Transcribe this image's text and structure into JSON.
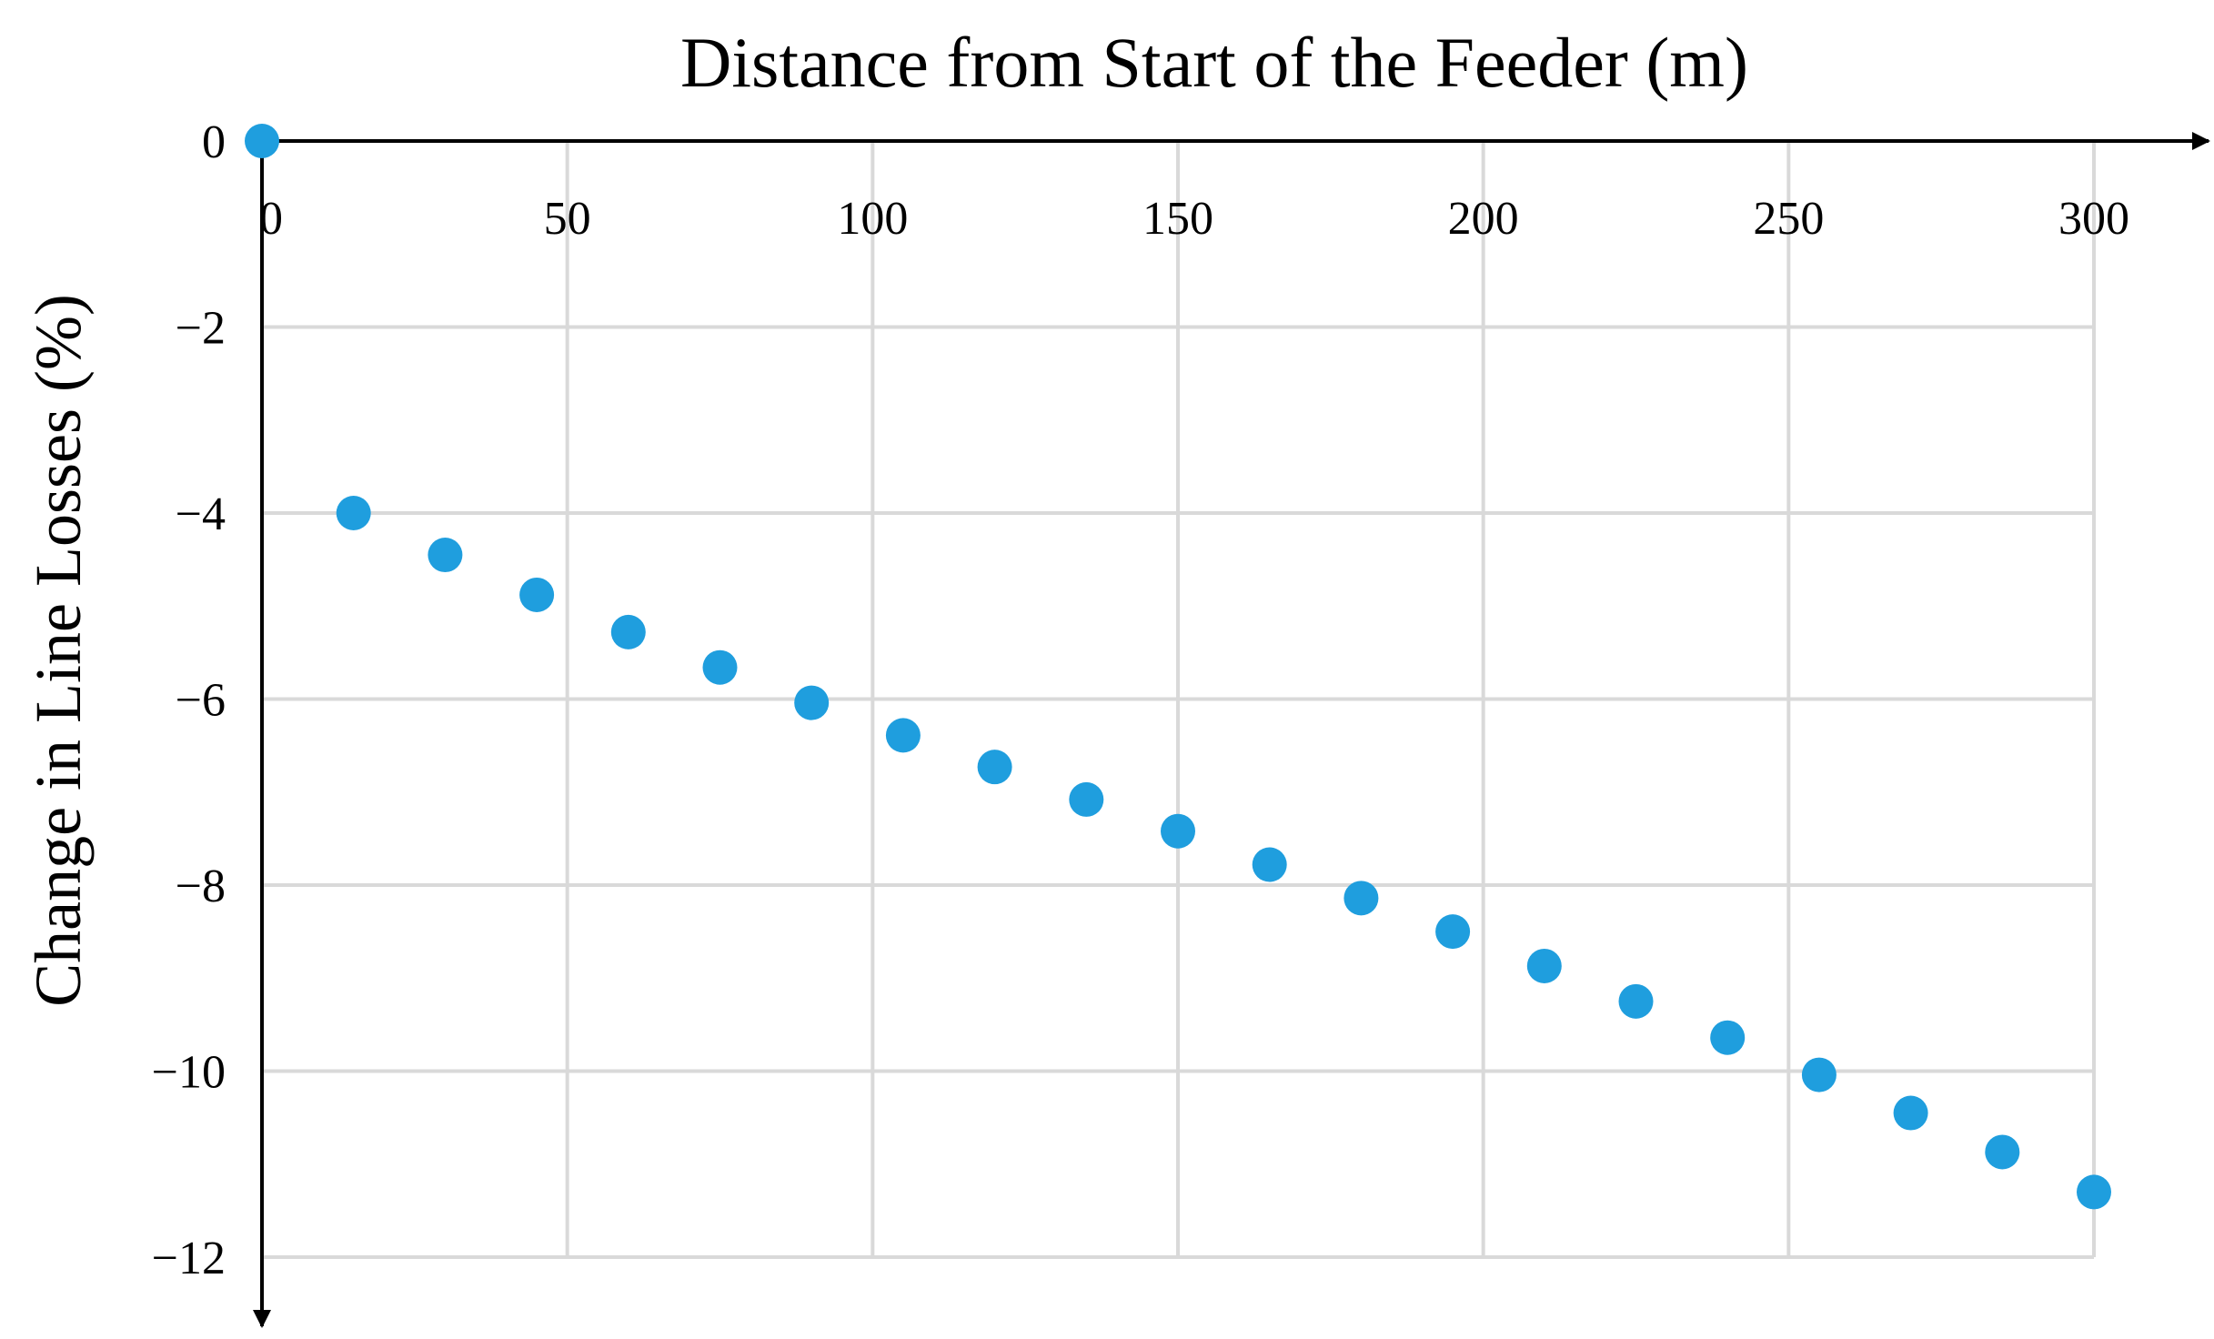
{
  "chart_data": {
    "type": "scatter",
    "title": "Distance from Start of the Feeder (m)",
    "xlabel": "Distance from Start of the Feeder (m)",
    "ylabel": "Change in Line Losses (%)",
    "xlim": [
      0,
      300
    ],
    "ylim": [
      -12,
      0
    ],
    "x_ticks": [
      0,
      50,
      100,
      150,
      200,
      250,
      300
    ],
    "x_tick_labels": [
      "0",
      "50",
      "100",
      "150",
      "200",
      "250",
      "300"
    ],
    "y_ticks": [
      0,
      -2,
      -4,
      -6,
      -8,
      -10,
      -12
    ],
    "y_tick_labels": [
      "0",
      "−2",
      "−4",
      "−6",
      "−8",
      "−10",
      "−12"
    ],
    "grid": true,
    "x_axis_position": "top",
    "marker_color": "#1f9ede",
    "series": [
      {
        "name": "Change in Line Losses",
        "x": [
          0,
          15,
          30,
          45,
          60,
          75,
          90,
          105,
          120,
          135,
          150,
          165,
          180,
          195,
          210,
          225,
          240,
          255,
          270,
          285,
          300
        ],
        "y": [
          0.0,
          -4.0,
          -4.45,
          -4.88,
          -5.28,
          -5.66,
          -6.04,
          -6.39,
          -6.73,
          -7.08,
          -7.42,
          -7.78,
          -8.14,
          -8.5,
          -8.87,
          -9.25,
          -9.64,
          -10.04,
          -10.45,
          -10.87,
          -11.3
        ]
      }
    ]
  }
}
